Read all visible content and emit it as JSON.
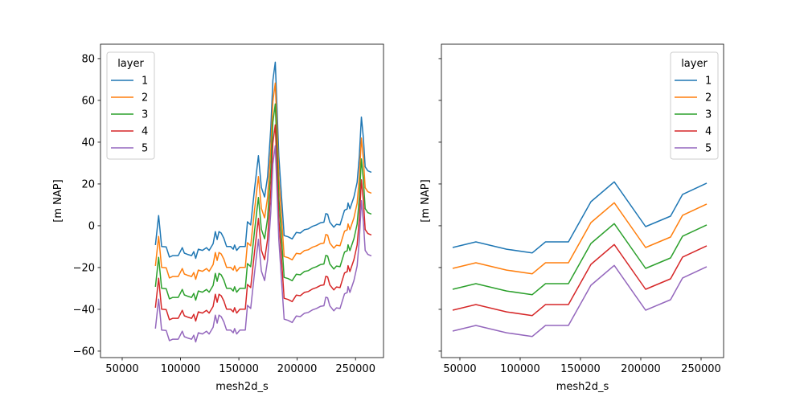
{
  "chart_data": [
    {
      "type": "line",
      "title": "",
      "xlabel": "mesh2d_s",
      "ylabel": "[m NAP]",
      "xlim": [
        31400,
        274000
      ],
      "ylim": [
        -63.1,
        86.9
      ],
      "xticks": [
        50000,
        100000,
        150000,
        200000,
        250000
      ],
      "xtick_labels": [
        "50000",
        "100000",
        "150000",
        "200000",
        "250000"
      ],
      "yticks": [
        80,
        60,
        40,
        20,
        0,
        -20,
        -40,
        -60
      ],
      "ytick_labels": [
        "80",
        "60",
        "40",
        "20",
        "0",
        "−20",
        "−40",
        "−60"
      ],
      "show_ytick_labels": true,
      "grid": false,
      "legend": {
        "title": "layer",
        "placement": "top-left"
      },
      "x": [
        78480,
        81240,
        83790,
        87720,
        90480,
        93450,
        98070,
        99860,
        101520,
        103310,
        106070,
        109520,
        111380,
        112970,
        115310,
        118760,
        122210,
        124480,
        127930,
        129790,
        131380,
        132970,
        134830,
        137100,
        139450,
        142900,
        145170,
        146350,
        148140,
        150900,
        155520,
        157380,
        160140,
        163590,
        166760,
        169310,
        172070,
        174620,
        177380,
        179180,
        181250,
        184290,
        188840,
        192290,
        195740,
        199190,
        202640,
        206090,
        209540,
        212990,
        216440,
        219890,
        222920,
        224500,
        226090,
        227950,
        231400,
        233670,
        236710,
        240570,
        242920,
        243610,
        245200,
        248650,
        251410,
        253270,
        255070,
        256720,
        258310,
        260590,
        263620
      ],
      "base": [
        -9.2,
        4.9,
        -9.9,
        -10.1,
        -15.0,
        -14.3,
        -14.3,
        -12.3,
        -10.5,
        -13.1,
        -13.7,
        -14.3,
        -12.4,
        -15.6,
        -11.2,
        -11.8,
        -10.5,
        -11.8,
        -8.6,
        -2.8,
        -6.6,
        -2.8,
        -3.5,
        -6.0,
        -9.9,
        -9.9,
        -11.2,
        -9.2,
        -11.8,
        -9.9,
        -9.9,
        1.9,
        0.4,
        18.3,
        33.5,
        18.3,
        13.8,
        23.5,
        46.5,
        69.6,
        78.3,
        33.3,
        -4.7,
        -5.3,
        -6.3,
        -3.2,
        -3.5,
        -1.9,
        -1.5,
        -0.3,
        0.4,
        1.4,
        1.7,
        5.8,
        5.5,
        1.7,
        -0.7,
        0.7,
        0.4,
        7.4,
        8.1,
        10.9,
        8.1,
        13.8,
        20.8,
        33.3,
        52.0,
        42.3,
        28.2,
        26.3,
        25.6
      ],
      "series": [
        {
          "name": "1",
          "offset": 0,
          "color": "#1f77b4"
        },
        {
          "name": "2",
          "offset": -10,
          "color": "#ff7f0e"
        },
        {
          "name": "3",
          "offset": -20,
          "color": "#2ca02c"
        },
        {
          "name": "4",
          "offset": -30,
          "color": "#d62728"
        },
        {
          "name": "5",
          "offset": -40,
          "color": "#9467bd"
        }
      ]
    },
    {
      "type": "line",
      "title": "",
      "xlabel": "mesh2d_s",
      "ylabel": "[m NAP]",
      "xlim": [
        34670,
        268670
      ],
      "ylim": [
        -63.1,
        86.9
      ],
      "xticks": [
        50000,
        100000,
        150000,
        200000,
        250000
      ],
      "xtick_labels": [
        "50000",
        "100000",
        "150000",
        "200000",
        "250000"
      ],
      "yticks": [
        80,
        60,
        40,
        20,
        0,
        -20,
        -40,
        -60
      ],
      "ytick_labels": [],
      "show_ytick_labels": false,
      "grid": false,
      "legend": {
        "title": "layer",
        "placement": "top-right"
      },
      "x": [
        44000,
        63300,
        88700,
        110000,
        121000,
        140000,
        158700,
        178000,
        204000,
        224700,
        234700,
        254700
      ],
      "base": [
        -10.4,
        -7.7,
        -11.2,
        -13.0,
        -7.7,
        -7.7,
        11.5,
        21.0,
        -0.4,
        4.6,
        15.0,
        20.4
      ],
      "series": [
        {
          "name": "1",
          "offset": 0,
          "color": "#1f77b4"
        },
        {
          "name": "2",
          "offset": -10,
          "color": "#ff7f0e"
        },
        {
          "name": "3",
          "offset": -20,
          "color": "#2ca02c"
        },
        {
          "name": "4",
          "offset": -30,
          "color": "#d62728"
        },
        {
          "name": "5",
          "offset": -40,
          "color": "#9467bd"
        }
      ]
    }
  ]
}
